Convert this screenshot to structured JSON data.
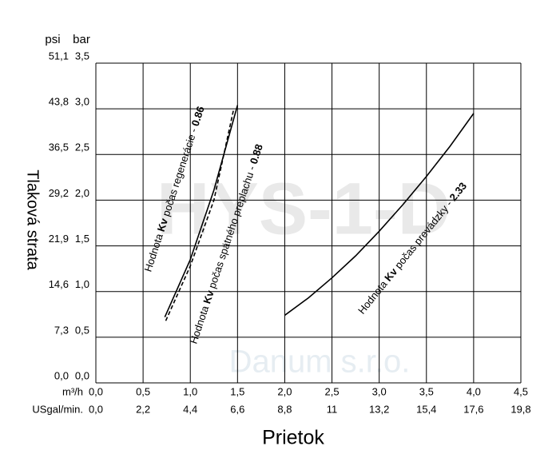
{
  "chart_data": {
    "type": "line",
    "y_label": "Tlaková strata",
    "x_label": "Prietok",
    "y_unit": "bar",
    "y_psi_unit": "psi",
    "x_unit": "m³/h",
    "x2_unit": "USgal/min.",
    "watermark": "HYS-1-D",
    "watermark_company": "Danum s.r.o.",
    "grid": true,
    "xlim": [
      0,
      4.5
    ],
    "ylim": [
      0,
      3.5
    ],
    "xticks": [
      {
        "value": 0,
        "label": "0,0"
      },
      {
        "value": 0.5,
        "label": "0,5"
      },
      {
        "value": 1,
        "label": "1,0"
      },
      {
        "value": 1.5,
        "label": "1,5"
      },
      {
        "value": 2,
        "label": "2,0"
      },
      {
        "value": 2.5,
        "label": "2,5"
      },
      {
        "value": 3,
        "label": "3,0"
      },
      {
        "value": 3.5,
        "label": "3,5"
      },
      {
        "value": 4,
        "label": "4,0"
      },
      {
        "value": 4.5,
        "label": "4,5"
      }
    ],
    "x2ticks": [
      {
        "value": 0,
        "label": "0,0"
      },
      {
        "value": 0.5,
        "label": "2,2"
      },
      {
        "value": 1,
        "label": "4,4"
      },
      {
        "value": 1.5,
        "label": "6,6"
      },
      {
        "value": 2,
        "label": "8,8"
      },
      {
        "value": 2.5,
        "label": "11"
      },
      {
        "value": 3,
        "label": "13,2"
      },
      {
        "value": 3.5,
        "label": "15,4"
      },
      {
        "value": 4,
        "label": "17,6"
      },
      {
        "value": 4.5,
        "label": "19,8"
      }
    ],
    "yticks": [
      {
        "value": 0,
        "label": "0,0"
      },
      {
        "value": 0.5,
        "label": "0,5"
      },
      {
        "value": 1,
        "label": "1,0"
      },
      {
        "value": 1.5,
        "label": "1,5"
      },
      {
        "value": 2,
        "label": "2,0"
      },
      {
        "value": 2.5,
        "label": "2,5"
      },
      {
        "value": 3,
        "label": "3,0"
      },
      {
        "value": 3.5,
        "label": "3,5"
      }
    ],
    "y_psi_ticks": [
      {
        "value": 0,
        "label": "0,0"
      },
      {
        "value": 0.5,
        "label": "7,3"
      },
      {
        "value": 1,
        "label": "14,6"
      },
      {
        "value": 1.5,
        "label": "21,9"
      },
      {
        "value": 2,
        "label": "29,2"
      },
      {
        "value": 2.5,
        "label": "36,5"
      },
      {
        "value": 3,
        "label": "43,8"
      },
      {
        "value": 3.5,
        "label": "51,1"
      }
    ],
    "series": [
      {
        "label_parts": [
          "Hodnota ",
          "Kv",
          " počas regenerácie - ",
          "0.86"
        ],
        "color": "#000000",
        "dashed": false,
        "x": [
          0.73,
          1.0,
          1.25,
          1.5
        ],
        "values": [
          0.72,
          1.35,
          2.11,
          3.04
        ]
      },
      {
        "label_parts": [
          "Hodnota ",
          "Kv",
          " počas spätného preplachu - ",
          "0.88"
        ],
        "color": "#000000",
        "dashed": true,
        "x": [
          0.74,
          1.0,
          1.25,
          1.46
        ],
        "values": [
          0.68,
          1.28,
          2.0,
          3.0
        ]
      },
      {
        "label_parts": [
          "Hodnota ",
          "Kv",
          " počas prevádzky - ",
          "2.33"
        ],
        "color": "#000000",
        "dashed": false,
        "x": [
          2.0,
          2.25,
          2.5,
          2.75,
          3.0,
          3.25,
          3.5,
          3.75,
          4.0
        ],
        "values": [
          0.74,
          0.93,
          1.15,
          1.39,
          1.66,
          1.95,
          2.26,
          2.59,
          2.95
        ]
      }
    ]
  }
}
